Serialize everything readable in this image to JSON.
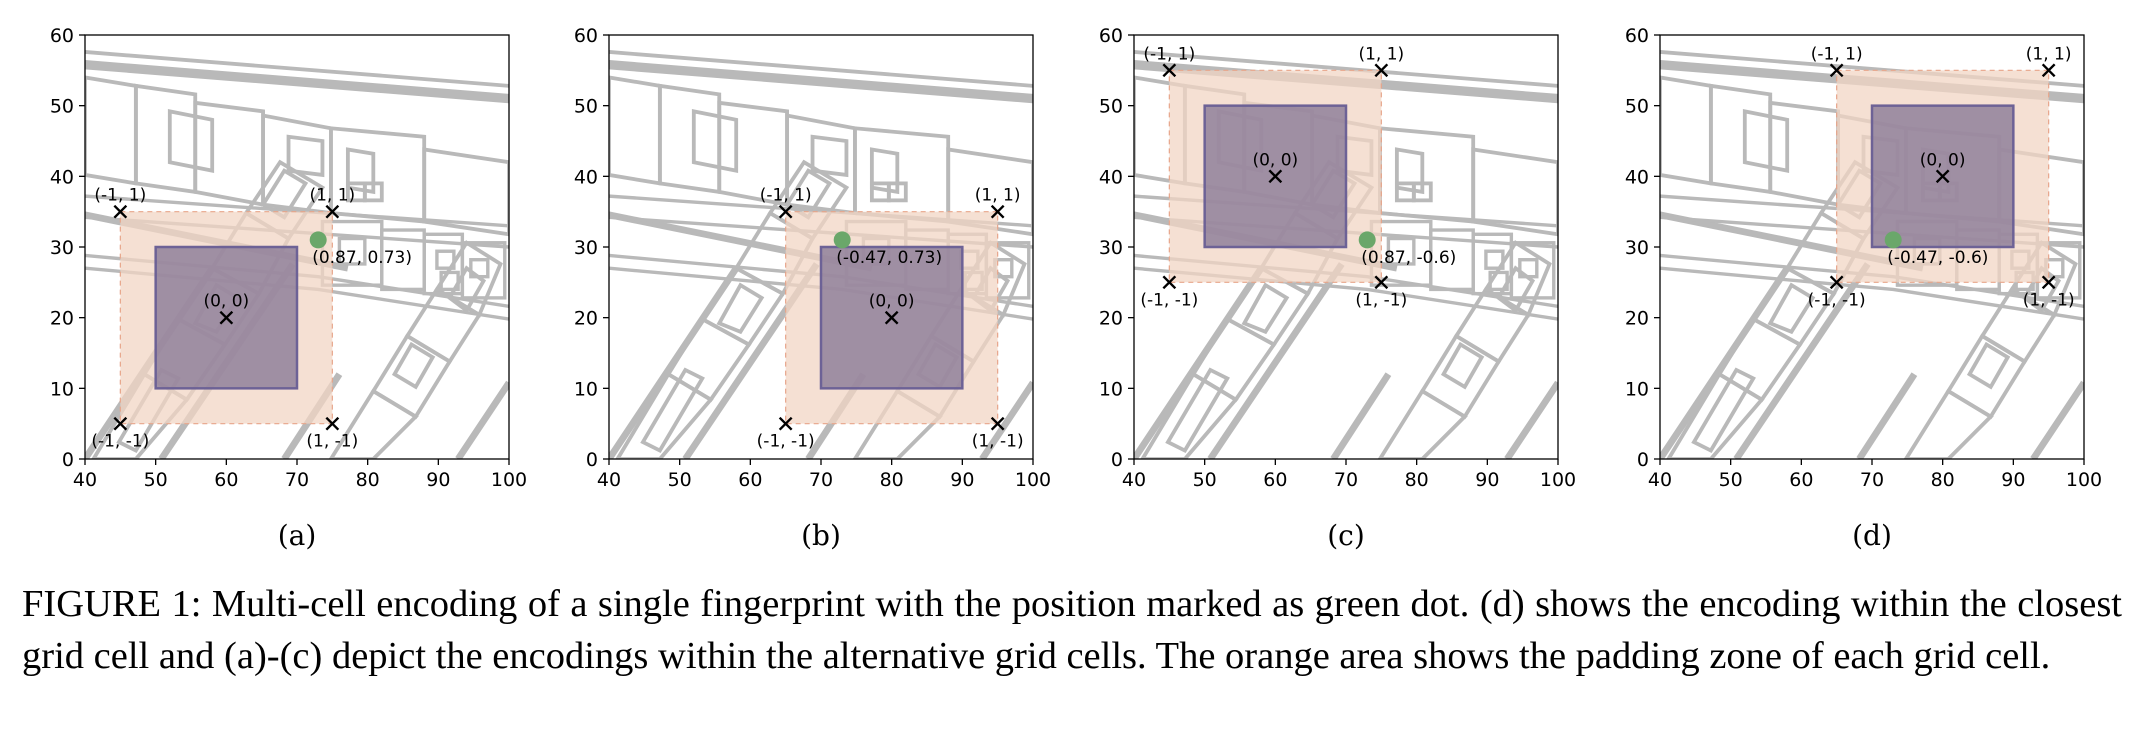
{
  "caption": "FIGURE 1: Multi-cell encoding of a single fingerprint with the position marked as green dot. (d) shows the encoding within the closest grid cell and (a)-(c) depict the encodings within the alternative grid cells. The orange area shows the padding zone of each grid cell.",
  "colors": {
    "background_map": "#b9b9b9",
    "padding_zone": "#f2d5c4",
    "grid_cell": "#8a7b97",
    "position_dot": "#6aa76a",
    "marker": "#000000"
  },
  "chart_data": [
    {
      "type": "scatter",
      "panel_label": "(a)",
      "xlim": [
        40,
        100
      ],
      "ylim": [
        0,
        60
      ],
      "xticks": [
        40,
        50,
        60,
        70,
        80,
        90,
        100
      ],
      "yticks": [
        0,
        10,
        20,
        30,
        40,
        50,
        60
      ],
      "padding_zone": {
        "x": [
          45,
          75
        ],
        "y": [
          5,
          35
        ]
      },
      "grid_cell": {
        "x": [
          50,
          70
        ],
        "y": [
          10,
          30
        ]
      },
      "markers": [
        {
          "x": 45,
          "y": 35,
          "label": "(-1, 1)"
        },
        {
          "x": 75,
          "y": 35,
          "label": "(1, 1)"
        },
        {
          "x": 60,
          "y": 20,
          "label": "(0, 0)"
        },
        {
          "x": 45,
          "y": 5,
          "label": "(-1, -1)"
        },
        {
          "x": 75,
          "y": 5,
          "label": "(1, -1)"
        }
      ],
      "position": {
        "x": 73,
        "y": 31,
        "label": "(0.87, 0.73)"
      }
    },
    {
      "type": "scatter",
      "panel_label": "(b)",
      "xlim": [
        40,
        100
      ],
      "ylim": [
        0,
        60
      ],
      "xticks": [
        40,
        50,
        60,
        70,
        80,
        90,
        100
      ],
      "yticks": [
        0,
        10,
        20,
        30,
        40,
        50,
        60
      ],
      "padding_zone": {
        "x": [
          65,
          95
        ],
        "y": [
          5,
          35
        ]
      },
      "grid_cell": {
        "x": [
          70,
          90
        ],
        "y": [
          10,
          30
        ]
      },
      "markers": [
        {
          "x": 65,
          "y": 35,
          "label": "(-1, 1)"
        },
        {
          "x": 95,
          "y": 35,
          "label": "(1, 1)"
        },
        {
          "x": 80,
          "y": 20,
          "label": "(0, 0)"
        },
        {
          "x": 65,
          "y": 5,
          "label": "(-1, -1)"
        },
        {
          "x": 95,
          "y": 5,
          "label": "(1, -1)"
        }
      ],
      "position": {
        "x": 73,
        "y": 31,
        "label": "(-0.47, 0.73)"
      }
    },
    {
      "type": "scatter",
      "panel_label": "(c)",
      "xlim": [
        40,
        100
      ],
      "ylim": [
        0,
        60
      ],
      "xticks": [
        40,
        50,
        60,
        70,
        80,
        90,
        100
      ],
      "yticks": [
        0,
        10,
        20,
        30,
        40,
        50,
        60
      ],
      "padding_zone": {
        "x": [
          45,
          75
        ],
        "y": [
          25,
          55
        ]
      },
      "grid_cell": {
        "x": [
          50,
          70
        ],
        "y": [
          30,
          50
        ]
      },
      "markers": [
        {
          "x": 45,
          "y": 55,
          "label": "(-1, 1)"
        },
        {
          "x": 75,
          "y": 55,
          "label": "(1, 1)"
        },
        {
          "x": 60,
          "y": 40,
          "label": "(0, 0)"
        },
        {
          "x": 45,
          "y": 25,
          "label": "(-1, -1)"
        },
        {
          "x": 75,
          "y": 25,
          "label": "(1, -1)"
        }
      ],
      "position": {
        "x": 73,
        "y": 31,
        "label": "(0.87, -0.6)"
      }
    },
    {
      "type": "scatter",
      "panel_label": "(d)",
      "xlim": [
        40,
        100
      ],
      "ylim": [
        0,
        60
      ],
      "xticks": [
        40,
        50,
        60,
        70,
        80,
        90,
        100
      ],
      "yticks": [
        0,
        10,
        20,
        30,
        40,
        50,
        60
      ],
      "padding_zone": {
        "x": [
          65,
          95
        ],
        "y": [
          25,
          55
        ]
      },
      "grid_cell": {
        "x": [
          70,
          90
        ],
        "y": [
          30,
          50
        ]
      },
      "markers": [
        {
          "x": 65,
          "y": 55,
          "label": "(-1, 1)"
        },
        {
          "x": 95,
          "y": 55,
          "label": "(1, 1)"
        },
        {
          "x": 80,
          "y": 40,
          "label": "(0, 0)"
        },
        {
          "x": 65,
          "y": 25,
          "label": "(-1, -1)"
        },
        {
          "x": 95,
          "y": 25,
          "label": "(1, -1)"
        }
      ],
      "position": {
        "x": 73,
        "y": 31,
        "label": "(-0.47, -0.6)"
      }
    }
  ]
}
